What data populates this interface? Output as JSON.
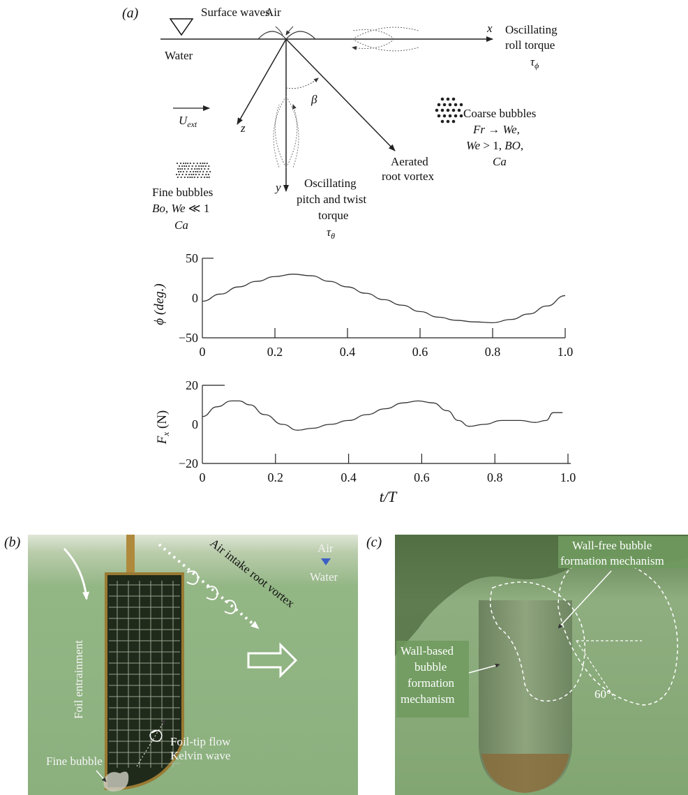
{
  "figure": {
    "panel_a": {
      "label": "(a)",
      "schematic": {
        "surface_waves": "Surface waves",
        "air": "Air",
        "water": "Water",
        "x_axis": "x",
        "y_axis": "y",
        "z_axis": "z",
        "beta": "β",
        "u_ext": "U",
        "u_ext_sub": "ext",
        "roll_torque_line1": "Oscillating",
        "roll_torque_line2": "roll torque",
        "roll_torque_symbol": "τ",
        "roll_torque_sub": "ϕ",
        "pitch_torque_line1": "Oscillating",
        "pitch_torque_line2": "pitch and twist",
        "pitch_torque_line3": "torque",
        "pitch_torque_symbol": "τ",
        "pitch_torque_sub": "θ",
        "aerated_line1": "Aerated",
        "aerated_line2": "root vortex",
        "coarse_line1": "Coarse bubbles",
        "coarse_line2": "Fr → We,",
        "coarse_line3a": "We",
        "coarse_line3b": " > 1, ",
        "coarse_line3c": "BO",
        "coarse_line3d": ",",
        "coarse_line4": "Ca",
        "fine_line1": "Fine bubbles",
        "fine_line2a": "Bo",
        "fine_line2b": ", ",
        "fine_line2c": "We",
        "fine_line2d": " ≪ 1",
        "fine_line3": "Ca"
      }
    },
    "panel_b": {
      "label": "(b)",
      "air": "Air",
      "water": "Water",
      "vortex_label": "Air intake root vortex",
      "foil_entrainment": "Foil entrainment",
      "tip_flow_line1": "Foil-tip flow",
      "tip_flow_line2": "Kelvin wave",
      "fine_bubble": "Fine bubble",
      "water_color": "#8fb585"
    },
    "panel_c": {
      "label": "(c)",
      "wall_free_line1": "Wall-free bubble",
      "wall_free_line2": "formation mechanism",
      "wall_based_line1": "Wall-based",
      "wall_based_line2": "bubble",
      "wall_based_line3": "formation",
      "wall_based_line4": "mechanism",
      "angle": "60°",
      "label_bg": "#6f9a5e"
    }
  },
  "chart_data": [
    {
      "type": "line",
      "xlabel": "",
      "ylabel": "ϕ (deg.)",
      "xlim": [
        0,
        1.0
      ],
      "ylim": [
        -50,
        50
      ],
      "x_ticks": [
        "0",
        "0.2",
        "0.4",
        "0.6",
        "0.8",
        "1.0"
      ],
      "y_ticks": [
        "50",
        "0",
        "−50"
      ],
      "series": [
        {
          "x": [
            0,
            0.05,
            0.1,
            0.15,
            0.2,
            0.25,
            0.3,
            0.35,
            0.4,
            0.45,
            0.5,
            0.55,
            0.6,
            0.65,
            0.7,
            0.75,
            0.8,
            0.85,
            0.9,
            0.95,
            1.0
          ],
          "values": [
            -4,
            5,
            14,
            21,
            27,
            30,
            28,
            21,
            14,
            6,
            -2,
            -9,
            -17,
            -24,
            -28,
            -30,
            -31,
            -27,
            -20,
            -10,
            3
          ]
        }
      ]
    },
    {
      "type": "line",
      "xlabel": "t/T",
      "ylabel": "F_x (N)",
      "xlim": [
        0,
        1.0
      ],
      "ylim": [
        -20,
        20
      ],
      "x_ticks": [
        "0",
        "0.2",
        "0.4",
        "0.6",
        "0.8",
        "1.0"
      ],
      "y_ticks": [
        "20",
        "0",
        "−20"
      ],
      "series": [
        {
          "x": [
            0,
            0.04,
            0.08,
            0.1,
            0.13,
            0.17,
            0.22,
            0.26,
            0.3,
            0.35,
            0.4,
            0.45,
            0.5,
            0.55,
            0.59,
            0.63,
            0.67,
            0.7,
            0.73,
            0.77,
            0.82,
            0.87,
            0.91,
            0.94,
            0.96,
            0.985
          ],
          "values": [
            4,
            9,
            12,
            12,
            10,
            5,
            0,
            -3,
            -2,
            0,
            2,
            5,
            8,
            11,
            12,
            11,
            7,
            2,
            -1,
            0,
            2,
            2,
            1,
            2,
            6,
            6
          ]
        }
      ]
    }
  ]
}
